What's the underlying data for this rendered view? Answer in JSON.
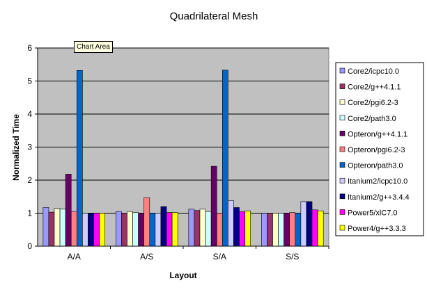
{
  "tooltip": "Chart Area",
  "chart_data": {
    "type": "bar",
    "title": "Quadrilateral Mesh",
    "xlabel": "Layout",
    "ylabel": "Normalized Time",
    "ylim": [
      0,
      6
    ],
    "yticks": [
      "0",
      "1",
      "2",
      "3",
      "4",
      "5",
      "6"
    ],
    "grid": true,
    "legend_position": "right",
    "plot_area_color": "#c0c0c0",
    "categories": [
      "A/A",
      "A/S",
      "S/A",
      "S/S"
    ],
    "series": [
      {
        "name": "Core2/icpc10.0",
        "color": "#9999ff",
        "values": [
          1.17,
          1.05,
          1.12,
          1.0
        ]
      },
      {
        "name": "Core2/g++4.1.1",
        "color": "#993366",
        "values": [
          1.03,
          1.0,
          1.08,
          1.0
        ]
      },
      {
        "name": "Core2/pgi6.2-3",
        "color": "#ffffcc",
        "values": [
          1.14,
          1.05,
          1.12,
          1.0
        ]
      },
      {
        "name": "Core2/path3.0",
        "color": "#ccffff",
        "values": [
          1.12,
          1.02,
          1.05,
          1.0
        ]
      },
      {
        "name": "Opteron/g++4.1.1",
        "color": "#660066",
        "values": [
          2.18,
          1.0,
          2.42,
          1.0
        ]
      },
      {
        "name": "Opteron/pgi6.2-3",
        "color": "#ff8080",
        "values": [
          1.05,
          1.47,
          1.0,
          1.02
        ]
      },
      {
        "name": "Opteron/path3.0",
        "color": "#0066cc",
        "values": [
          5.32,
          1.0,
          5.33,
          1.0
        ]
      },
      {
        "name": "Itanium2/icpc10.0",
        "color": "#ccccff",
        "values": [
          1.0,
          1.0,
          1.38,
          1.35
        ]
      },
      {
        "name": "Itanium2/g++3.4.4",
        "color": "#000080",
        "values": [
          1.0,
          1.2,
          1.17,
          1.35
        ]
      },
      {
        "name": "Power5/xlC7.0",
        "color": "#ff00ff",
        "values": [
          1.0,
          1.02,
          1.05,
          1.1
        ]
      },
      {
        "name": "Power4/g++3.3.3",
        "color": "#ffff00",
        "values": [
          1.0,
          1.02,
          1.07,
          1.07
        ]
      }
    ]
  }
}
